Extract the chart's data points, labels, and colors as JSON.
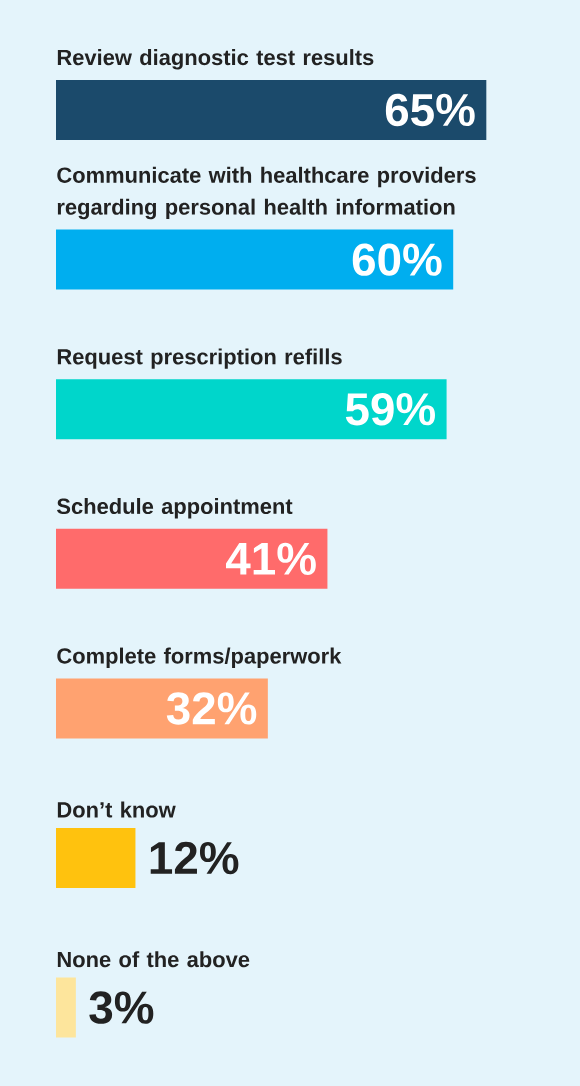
{
  "chart_data": {
    "type": "bar",
    "orientation": "horizontal",
    "categories": [
      "Review diagnostic test results",
      "Communicate with healthcare providers regarding personal health information",
      "Request prescription refills",
      "Schedule appointment",
      "Complete forms/paperwork",
      "Don’t know",
      "None of the above"
    ],
    "values": [
      65,
      60,
      59,
      41,
      32,
      12,
      3
    ],
    "value_labels": [
      "65%",
      "60%",
      "59%",
      "41%",
      "32%",
      "12%",
      "3%"
    ],
    "colors": [
      "#1b4a6b",
      "#00aeef",
      "#00d6cb",
      "#ff6b6b",
      "#ffa270",
      "#ffc20e",
      "#fde59c"
    ]
  }
}
